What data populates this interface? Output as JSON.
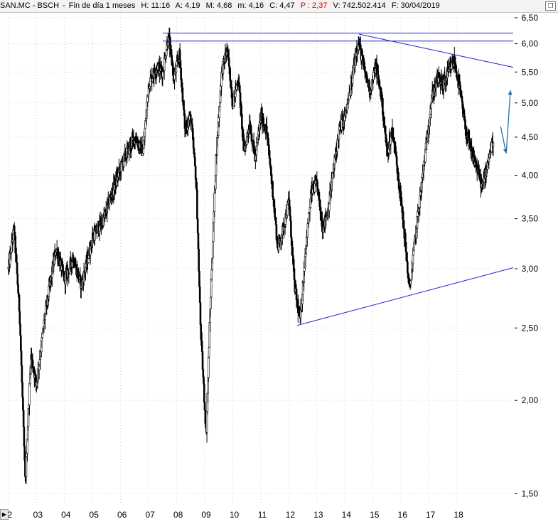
{
  "header": {
    "symbol": "SAN.MC - BSCH",
    "period": "Fin de día 1 meses",
    "time_label": "H:",
    "time": "11:16",
    "open_label": "A:",
    "open": "4,19",
    "high_label": "M:",
    "high": "4,68",
    "low_label": "m:",
    "low": "4,16",
    "close_label": "C:",
    "close": "4,47",
    "p_label": "P :",
    "p_value": "2,37",
    "volume_label": "V:",
    "volume": "742.502.414",
    "date_label": "F:",
    "date": "30/04/2019"
  },
  "chart_data": {
    "type": "candlestick",
    "title": "SAN.MC - BSCH",
    "xlabel": "",
    "ylabel": "",
    "ylim": [
      1.45,
      6.6
    ],
    "y_scale": "log",
    "grid": true,
    "y_ticks": [
      "6,50",
      "6,00",
      "5,50",
      "5,00",
      "4,50",
      "4,00",
      "3,50",
      "3,00",
      "2,50",
      "2,00",
      "1,50"
    ],
    "y_tick_values": [
      6.5,
      6.0,
      5.5,
      5.0,
      4.5,
      4.0,
      3.5,
      3.0,
      2.5,
      2.0,
      1.5
    ],
    "x_ticks": [
      "2",
      "03",
      "04",
      "05",
      "06",
      "07",
      "08",
      "09",
      "10",
      "11",
      "12",
      "13",
      "14",
      "15",
      "16",
      "17",
      "18"
    ],
    "x_tick_values": [
      2002,
      2003,
      2004,
      2005,
      2006,
      2007,
      2008,
      2009,
      2010,
      2011,
      2012,
      2013,
      2014,
      2015,
      2016,
      2017,
      2018
    ],
    "x_range": [
      2001.8,
      2020.0
    ],
    "price_path": [
      [
        2002.0,
        3.0
      ],
      [
        2002.2,
        3.4
      ],
      [
        2002.4,
        2.6
      ],
      [
        2002.6,
        1.55
      ],
      [
        2002.8,
        2.3
      ],
      [
        2003.0,
        2.1
      ],
      [
        2003.3,
        2.6
      ],
      [
        2003.7,
        3.2
      ],
      [
        2004.0,
        2.9
      ],
      [
        2004.3,
        3.1
      ],
      [
        2004.6,
        2.85
      ],
      [
        2005.0,
        3.3
      ],
      [
        2005.4,
        3.5
      ],
      [
        2005.8,
        3.9
      ],
      [
        2006.1,
        4.2
      ],
      [
        2006.5,
        4.5
      ],
      [
        2006.8,
        4.3
      ],
      [
        2007.0,
        5.3
      ],
      [
        2007.3,
        5.6
      ],
      [
        2007.5,
        5.5
      ],
      [
        2007.7,
        6.15
      ],
      [
        2007.9,
        5.4
      ],
      [
        2008.1,
        5.8
      ],
      [
        2008.3,
        4.6
      ],
      [
        2008.5,
        4.8
      ],
      [
        2008.7,
        3.9
      ],
      [
        2008.85,
        2.5
      ],
      [
        2009.05,
        1.8
      ],
      [
        2009.2,
        2.7
      ],
      [
        2009.4,
        4.2
      ],
      [
        2009.6,
        5.5
      ],
      [
        2009.8,
        5.9
      ],
      [
        2010.0,
        5.0
      ],
      [
        2010.2,
        5.4
      ],
      [
        2010.4,
        4.3
      ],
      [
        2010.6,
        4.7
      ],
      [
        2010.8,
        4.2
      ],
      [
        2011.0,
        4.8
      ],
      [
        2011.2,
        4.6
      ],
      [
        2011.4,
        3.9
      ],
      [
        2011.6,
        3.2
      ],
      [
        2011.8,
        3.4
      ],
      [
        2012.0,
        3.7
      ],
      [
        2012.2,
        2.85
      ],
      [
        2012.4,
        2.55
      ],
      [
        2012.6,
        3.2
      ],
      [
        2012.8,
        3.8
      ],
      [
        2013.0,
        3.9
      ],
      [
        2013.2,
        3.4
      ],
      [
        2013.4,
        3.6
      ],
      [
        2013.6,
        4.1
      ],
      [
        2013.8,
        4.6
      ],
      [
        2014.0,
        4.8
      ],
      [
        2014.2,
        5.2
      ],
      [
        2014.4,
        5.9
      ],
      [
        2014.5,
        6.0
      ],
      [
        2014.7,
        5.5
      ],
      [
        2014.9,
        5.2
      ],
      [
        2015.1,
        5.6
      ],
      [
        2015.3,
        5.1
      ],
      [
        2015.5,
        4.3
      ],
      [
        2015.7,
        4.6
      ],
      [
        2015.9,
        4.0
      ],
      [
        2016.1,
        3.4
      ],
      [
        2016.3,
        2.8
      ],
      [
        2016.5,
        3.3
      ],
      [
        2016.7,
        3.8
      ],
      [
        2016.9,
        4.4
      ],
      [
        2017.1,
        5.1
      ],
      [
        2017.3,
        5.4
      ],
      [
        2017.5,
        5.3
      ],
      [
        2017.7,
        5.5
      ],
      [
        2017.9,
        5.7
      ],
      [
        2018.1,
        5.2
      ],
      [
        2018.3,
        4.6
      ],
      [
        2018.5,
        4.3
      ],
      [
        2018.7,
        4.1
      ],
      [
        2018.9,
        3.85
      ],
      [
        2019.1,
        4.2
      ],
      [
        2019.3,
        4.47
      ]
    ],
    "annotations": [
      {
        "kind": "hline",
        "y": 6.2,
        "x0": 2007.5,
        "x1": 2020.0
      },
      {
        "kind": "hline",
        "y": 6.05,
        "x0": 2007.5,
        "x1": 2020.0
      },
      {
        "kind": "trendline",
        "from": [
          2014.5,
          6.18
        ],
        "to": [
          2020.0,
          5.58
        ]
      },
      {
        "kind": "trendline",
        "from": [
          2012.3,
          2.52
        ],
        "to": [
          2020.0,
          3.01
        ]
      },
      {
        "kind": "projection-arrow",
        "points": [
          [
            2019.55,
            4.65
          ],
          [
            2019.75,
            4.28
          ],
          [
            2019.9,
            5.2
          ]
        ]
      }
    ],
    "colors": {
      "candles": "#000000",
      "lines": "#1f1fcf",
      "arrow": "#2a6fa8",
      "grid": "#d4d4d4"
    }
  }
}
